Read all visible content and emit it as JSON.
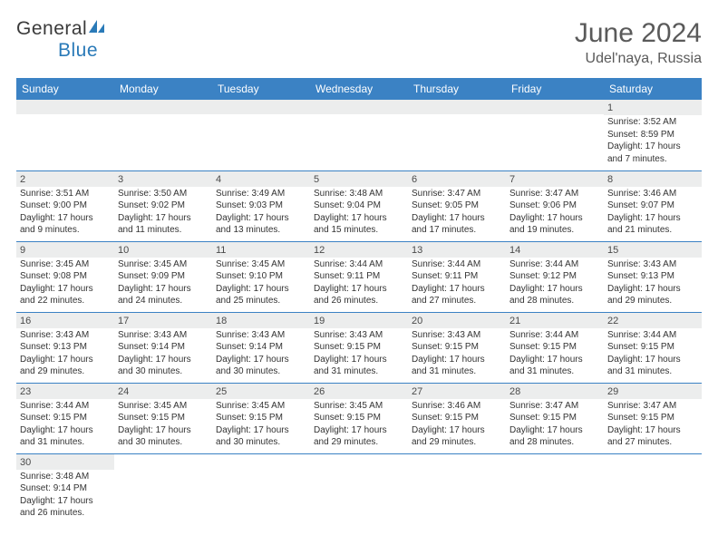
{
  "logo": {
    "general": "General",
    "blue": "Blue"
  },
  "title": "June 2024",
  "location": "Udel'naya, Russia",
  "colors": {
    "header_bg": "#3b82c4",
    "header_text": "#ffffff",
    "daynum_bg": "#eceded",
    "text": "#333333",
    "title_text": "#5a5a5a",
    "border": "#3b82c4"
  },
  "day_headers": [
    "Sunday",
    "Monday",
    "Tuesday",
    "Wednesday",
    "Thursday",
    "Friday",
    "Saturday"
  ],
  "weeks": [
    [
      null,
      null,
      null,
      null,
      null,
      null,
      {
        "n": "1",
        "sunrise": "Sunrise: 3:52 AM",
        "sunset": "Sunset: 8:59 PM",
        "daylight": "Daylight: 17 hours and 7 minutes."
      }
    ],
    [
      {
        "n": "2",
        "sunrise": "Sunrise: 3:51 AM",
        "sunset": "Sunset: 9:00 PM",
        "daylight": "Daylight: 17 hours and 9 minutes."
      },
      {
        "n": "3",
        "sunrise": "Sunrise: 3:50 AM",
        "sunset": "Sunset: 9:02 PM",
        "daylight": "Daylight: 17 hours and 11 minutes."
      },
      {
        "n": "4",
        "sunrise": "Sunrise: 3:49 AM",
        "sunset": "Sunset: 9:03 PM",
        "daylight": "Daylight: 17 hours and 13 minutes."
      },
      {
        "n": "5",
        "sunrise": "Sunrise: 3:48 AM",
        "sunset": "Sunset: 9:04 PM",
        "daylight": "Daylight: 17 hours and 15 minutes."
      },
      {
        "n": "6",
        "sunrise": "Sunrise: 3:47 AM",
        "sunset": "Sunset: 9:05 PM",
        "daylight": "Daylight: 17 hours and 17 minutes."
      },
      {
        "n": "7",
        "sunrise": "Sunrise: 3:47 AM",
        "sunset": "Sunset: 9:06 PM",
        "daylight": "Daylight: 17 hours and 19 minutes."
      },
      {
        "n": "8",
        "sunrise": "Sunrise: 3:46 AM",
        "sunset": "Sunset: 9:07 PM",
        "daylight": "Daylight: 17 hours and 21 minutes."
      }
    ],
    [
      {
        "n": "9",
        "sunrise": "Sunrise: 3:45 AM",
        "sunset": "Sunset: 9:08 PM",
        "daylight": "Daylight: 17 hours and 22 minutes."
      },
      {
        "n": "10",
        "sunrise": "Sunrise: 3:45 AM",
        "sunset": "Sunset: 9:09 PM",
        "daylight": "Daylight: 17 hours and 24 minutes."
      },
      {
        "n": "11",
        "sunrise": "Sunrise: 3:45 AM",
        "sunset": "Sunset: 9:10 PM",
        "daylight": "Daylight: 17 hours and 25 minutes."
      },
      {
        "n": "12",
        "sunrise": "Sunrise: 3:44 AM",
        "sunset": "Sunset: 9:11 PM",
        "daylight": "Daylight: 17 hours and 26 minutes."
      },
      {
        "n": "13",
        "sunrise": "Sunrise: 3:44 AM",
        "sunset": "Sunset: 9:11 PM",
        "daylight": "Daylight: 17 hours and 27 minutes."
      },
      {
        "n": "14",
        "sunrise": "Sunrise: 3:44 AM",
        "sunset": "Sunset: 9:12 PM",
        "daylight": "Daylight: 17 hours and 28 minutes."
      },
      {
        "n": "15",
        "sunrise": "Sunrise: 3:43 AM",
        "sunset": "Sunset: 9:13 PM",
        "daylight": "Daylight: 17 hours and 29 minutes."
      }
    ],
    [
      {
        "n": "16",
        "sunrise": "Sunrise: 3:43 AM",
        "sunset": "Sunset: 9:13 PM",
        "daylight": "Daylight: 17 hours and 29 minutes."
      },
      {
        "n": "17",
        "sunrise": "Sunrise: 3:43 AM",
        "sunset": "Sunset: 9:14 PM",
        "daylight": "Daylight: 17 hours and 30 minutes."
      },
      {
        "n": "18",
        "sunrise": "Sunrise: 3:43 AM",
        "sunset": "Sunset: 9:14 PM",
        "daylight": "Daylight: 17 hours and 30 minutes."
      },
      {
        "n": "19",
        "sunrise": "Sunrise: 3:43 AM",
        "sunset": "Sunset: 9:15 PM",
        "daylight": "Daylight: 17 hours and 31 minutes."
      },
      {
        "n": "20",
        "sunrise": "Sunrise: 3:43 AM",
        "sunset": "Sunset: 9:15 PM",
        "daylight": "Daylight: 17 hours and 31 minutes."
      },
      {
        "n": "21",
        "sunrise": "Sunrise: 3:44 AM",
        "sunset": "Sunset: 9:15 PM",
        "daylight": "Daylight: 17 hours and 31 minutes."
      },
      {
        "n": "22",
        "sunrise": "Sunrise: 3:44 AM",
        "sunset": "Sunset: 9:15 PM",
        "daylight": "Daylight: 17 hours and 31 minutes."
      }
    ],
    [
      {
        "n": "23",
        "sunrise": "Sunrise: 3:44 AM",
        "sunset": "Sunset: 9:15 PM",
        "daylight": "Daylight: 17 hours and 31 minutes."
      },
      {
        "n": "24",
        "sunrise": "Sunrise: 3:45 AM",
        "sunset": "Sunset: 9:15 PM",
        "daylight": "Daylight: 17 hours and 30 minutes."
      },
      {
        "n": "25",
        "sunrise": "Sunrise: 3:45 AM",
        "sunset": "Sunset: 9:15 PM",
        "daylight": "Daylight: 17 hours and 30 minutes."
      },
      {
        "n": "26",
        "sunrise": "Sunrise: 3:45 AM",
        "sunset": "Sunset: 9:15 PM",
        "daylight": "Daylight: 17 hours and 29 minutes."
      },
      {
        "n": "27",
        "sunrise": "Sunrise: 3:46 AM",
        "sunset": "Sunset: 9:15 PM",
        "daylight": "Daylight: 17 hours and 29 minutes."
      },
      {
        "n": "28",
        "sunrise": "Sunrise: 3:47 AM",
        "sunset": "Sunset: 9:15 PM",
        "daylight": "Daylight: 17 hours and 28 minutes."
      },
      {
        "n": "29",
        "sunrise": "Sunrise: 3:47 AM",
        "sunset": "Sunset: 9:15 PM",
        "daylight": "Daylight: 17 hours and 27 minutes."
      }
    ],
    [
      {
        "n": "30",
        "sunrise": "Sunrise: 3:48 AM",
        "sunset": "Sunset: 9:14 PM",
        "daylight": "Daylight: 17 hours and 26 minutes."
      },
      null,
      null,
      null,
      null,
      null,
      null
    ]
  ]
}
